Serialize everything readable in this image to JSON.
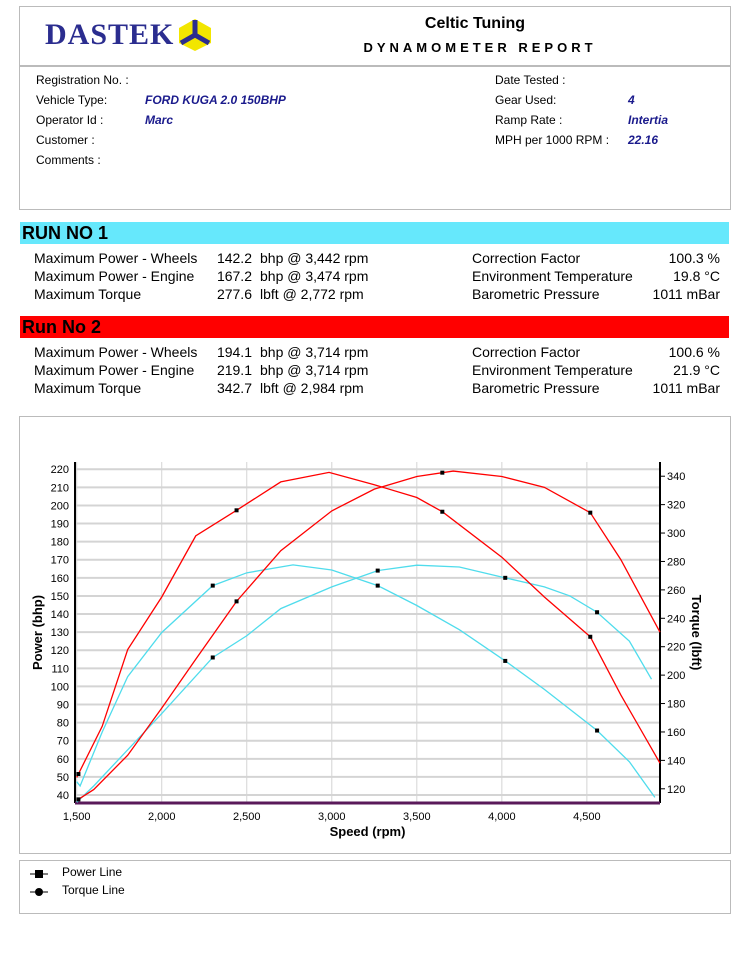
{
  "header": {
    "logo": "DASTEK",
    "company": "Celtic Tuning",
    "report_title": "DYNAMOMETER REPORT"
  },
  "info": {
    "left": [
      {
        "label": "Registration No. :",
        "value": ""
      },
      {
        "label": "Vehicle Type:",
        "value": "FORD KUGA 2.0 150BHP"
      },
      {
        "label": "Operator Id :",
        "value": "Marc"
      },
      {
        "label": "Customer :",
        "value": ""
      },
      {
        "label": "Comments :",
        "value": ""
      }
    ],
    "right": [
      {
        "label": "Date Tested :",
        "value": ""
      },
      {
        "label": "Gear Used:",
        "value": "4"
      },
      {
        "label": "Ramp Rate :",
        "value": "Intertia"
      },
      {
        "label": "MPH per 1000 RPM :",
        "value": "22.16"
      }
    ]
  },
  "runs": [
    {
      "title": "RUN NO 1",
      "color": "#66e8fc",
      "rows": [
        {
          "label": "Maximum Power - Wheels",
          "value": "142.2",
          "unit": "bhp @ 3,442 rpm",
          "rlabel": "Correction Factor",
          "rvalue": "100.3 %"
        },
        {
          "label": "Maximum Power - Engine",
          "value": "167.2",
          "unit": "bhp @ 3,474 rpm",
          "rlabel": "Environment Temperature",
          "rvalue": "19.8 °C"
        },
        {
          "label": "Maximum Torque",
          "value": "277.6",
          "unit": "lbft @ 2,772 rpm",
          "rlabel": "Barometric Pressure",
          "rvalue": "1011 mBar"
        }
      ]
    },
    {
      "title": "Run No 2",
      "color": "#ff0000",
      "rows": [
        {
          "label": "Maximum Power - Wheels",
          "value": "194.1",
          "unit": "bhp @ 3,714 rpm",
          "rlabel": "Correction Factor",
          "rvalue": "100.6 %"
        },
        {
          "label": "Maximum Power - Engine",
          "value": "219.1",
          "unit": "bhp @ 3,714 rpm",
          "rlabel": "Environment Temperature",
          "rvalue": "21.9 °C"
        },
        {
          "label": "Maximum Torque",
          "value": "342.7",
          "unit": "lbft @ 2,984 rpm",
          "rlabel": "Barometric Pressure",
          "rvalue": "1011 mBar"
        }
      ]
    }
  ],
  "legend": [
    {
      "label": "Power Line",
      "marker": "square"
    },
    {
      "label": "Torque Line",
      "marker": "circle"
    }
  ],
  "chart_data": {
    "type": "line",
    "xlabel": "Speed (rpm)",
    "ylabel": "Power (bhp)",
    "y2label": "Torque (lbft)",
    "xlim": [
      1490,
      4930
    ],
    "ylim": [
      35.6,
      224
    ],
    "y2lim": [
      110,
      350
    ],
    "grid": true,
    "xticks": [
      "1,500",
      "2,000",
      "2,500",
      "3,000",
      "3,500",
      "4,000",
      "4,500"
    ],
    "xtick_values": [
      1500,
      2000,
      2500,
      3000,
      3500,
      4000,
      4500
    ],
    "yticks": [
      40,
      50,
      60,
      70,
      80,
      90,
      100,
      110,
      120,
      130,
      140,
      150,
      160,
      170,
      180,
      190,
      200,
      210,
      220
    ],
    "y2ticks": [
      120,
      140,
      160,
      180,
      200,
      220,
      240,
      260,
      280,
      300,
      320,
      340
    ],
    "series": [
      {
        "run": "Run 1",
        "kind": "power",
        "axis": "left",
        "color": "#4fdcec",
        "x": [
          1500,
          1600,
          1800,
          2000,
          2300,
          2500,
          2700,
          3000,
          3270,
          3500,
          3750,
          4020,
          4250,
          4400,
          4560,
          4750,
          4880
        ],
        "y": [
          36,
          45,
          65,
          85,
          116,
          128,
          143,
          155,
          164,
          167,
          166,
          160,
          155,
          150,
          141,
          125,
          104
        ],
        "markers": [
          2300,
          3270,
          4020,
          4560
        ]
      },
      {
        "run": "Run 1",
        "kind": "torque",
        "axis": "right",
        "color": "#4fdcec",
        "x": [
          1500,
          1520,
          1650,
          1800,
          2000,
          2300,
          2500,
          2772,
          3000,
          3270,
          3500,
          3750,
          4020,
          4250,
          4560,
          4750,
          4900
        ],
        "y": [
          125,
          122,
          160,
          199,
          230,
          263,
          272,
          277.6,
          274,
          263,
          249,
          232,
          210,
          190,
          161,
          139,
          114
        ],
        "markers": [
          2300,
          3270,
          4020,
          4560
        ]
      },
      {
        "run": "Run 2",
        "kind": "power",
        "axis": "left",
        "color": "#ff0000",
        "x": [
          1500,
          1600,
          1800,
          2000,
          2200,
          2440,
          2700,
          3000,
          3250,
          3500,
          3714,
          4000,
          4250,
          4520,
          4700,
          4930
        ],
        "y": [
          37,
          43,
          62,
          88,
          115,
          147,
          175,
          197,
          209,
          216,
          219,
          216,
          210,
          196,
          170,
          130
        ],
        "markers": [
          1510,
          2440,
          3650,
          4520
        ]
      },
      {
        "run": "Run 2",
        "kind": "torque",
        "axis": "right",
        "color": "#ff0000",
        "x": [
          1500,
          1650,
          1800,
          2000,
          2200,
          2440,
          2700,
          2984,
          3250,
          3500,
          3650,
          4000,
          4250,
          4520,
          4700,
          4930
        ],
        "y": [
          128,
          164,
          218,
          255,
          298,
          316,
          336,
          342.7,
          334,
          325,
          315,
          283,
          255,
          227,
          186,
          138
        ],
        "markers": [
          1510,
          2440,
          3650,
          4520
        ]
      }
    ]
  }
}
